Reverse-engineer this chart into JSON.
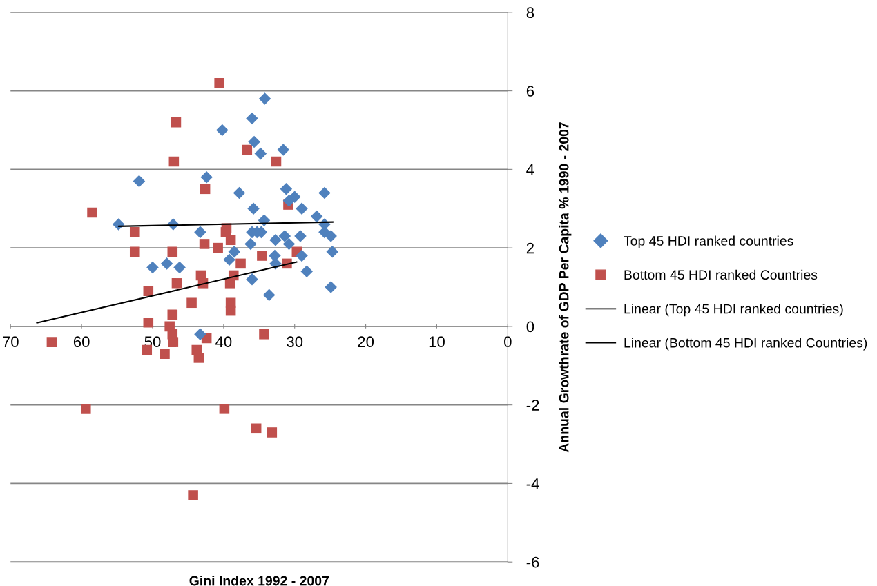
{
  "chart_data": {
    "type": "scatter",
    "xlabel": "Gini Index 1992 - 2007",
    "ylabel": "Annual Growthrate of GDP Per Capita % 1990 - 2007",
    "xlim": [
      70,
      0
    ],
    "xticks": [
      70,
      60,
      50,
      40,
      30,
      20,
      10,
      0
    ],
    "ylim": [
      -6,
      8
    ],
    "yticks": [
      -6,
      -4,
      -2,
      0,
      2,
      4,
      6,
      8
    ],
    "grid": "y",
    "legend": "right",
    "series": [
      {
        "name": "Top 45 HDI ranked countries",
        "type": "scatter",
        "marker": "diamond",
        "color": "#4f81bd",
        "x": [
          54.8,
          51.9,
          47.1,
          50.0,
          48.0,
          46.2,
          43.3,
          42.4,
          43.3,
          40.2,
          37.8,
          39.2,
          38.5,
          34.2,
          36.0,
          35.7,
          34.8,
          31.6,
          31.2,
          30.0,
          25.8,
          35.8,
          29.0,
          34.3,
          26.9,
          25.8,
          36.0,
          34.7,
          32.7,
          31.4,
          29.2,
          25.8,
          24.9,
          36.2,
          30.8,
          24.7,
          32.8,
          29.0,
          32.7,
          28.3,
          36.0,
          33.6,
          24.9,
          30.8,
          35.3
        ],
        "values": [
          2.6,
          3.7,
          2.6,
          1.5,
          1.6,
          1.5,
          2.4,
          3.8,
          -0.2,
          5.0,
          3.4,
          1.7,
          1.9,
          5.8,
          5.3,
          4.7,
          4.4,
          4.5,
          3.5,
          3.3,
          3.4,
          3.0,
          3.0,
          2.7,
          2.8,
          2.6,
          2.4,
          2.4,
          2.2,
          2.3,
          2.3,
          2.4,
          2.3,
          2.1,
          2.1,
          1.9,
          1.8,
          1.8,
          1.6,
          1.4,
          1.2,
          0.8,
          1.0,
          3.2,
          2.4
        ]
      },
      {
        "name": "Bottom 45 HDI ranked Countries",
        "type": "scatter",
        "marker": "square",
        "color": "#c0504d",
        "x": [
          40.6,
          46.7,
          47.0,
          42.6,
          52.5,
          52.5,
          47.2,
          42.7,
          40.8,
          39.6,
          39.7,
          39.0,
          43.2,
          42.9,
          46.6,
          50.6,
          44.5,
          39.0,
          39.0,
          39.1,
          38.6,
          37.6,
          50.6,
          47.2,
          47.6,
          47.2,
          47.1,
          42.4,
          50.8,
          48.3,
          43.8,
          43.5,
          58.5,
          64.2,
          59.4,
          36.7,
          32.6,
          30.9,
          34.6,
          31.1,
          29.7,
          34.3,
          39.9,
          35.4,
          33.2,
          44.3
        ],
        "values": [
          6.2,
          5.2,
          4.2,
          3.5,
          2.4,
          1.9,
          1.9,
          2.1,
          2.0,
          2.5,
          2.4,
          2.2,
          1.3,
          1.1,
          1.1,
          0.9,
          0.6,
          0.6,
          0.4,
          1.1,
          1.3,
          1.6,
          0.1,
          0.3,
          0.0,
          -0.2,
          -0.4,
          -0.3,
          -0.6,
          -0.7,
          -0.6,
          -0.8,
          2.9,
          -0.4,
          -2.1,
          4.5,
          4.2,
          3.1,
          1.8,
          1.6,
          1.9,
          -0.2,
          -2.1,
          -2.6,
          -2.7,
          -4.3
        ]
      },
      {
        "name": "Linear (Top 45 HDI ranked countries)",
        "type": "line",
        "marker": "none",
        "line_style": "solid",
        "color": "#000000",
        "x": [
          54.8,
          24.6
        ],
        "values": [
          2.55,
          2.66
        ]
      },
      {
        "name": "Linear (Bottom 45 HDI ranked Countries)",
        "type": "line",
        "marker": "none",
        "line_style": "solid",
        "color": "#000000",
        "x": [
          66.3,
          29.7
        ],
        "values": [
          0.09,
          1.64
        ]
      }
    ]
  }
}
